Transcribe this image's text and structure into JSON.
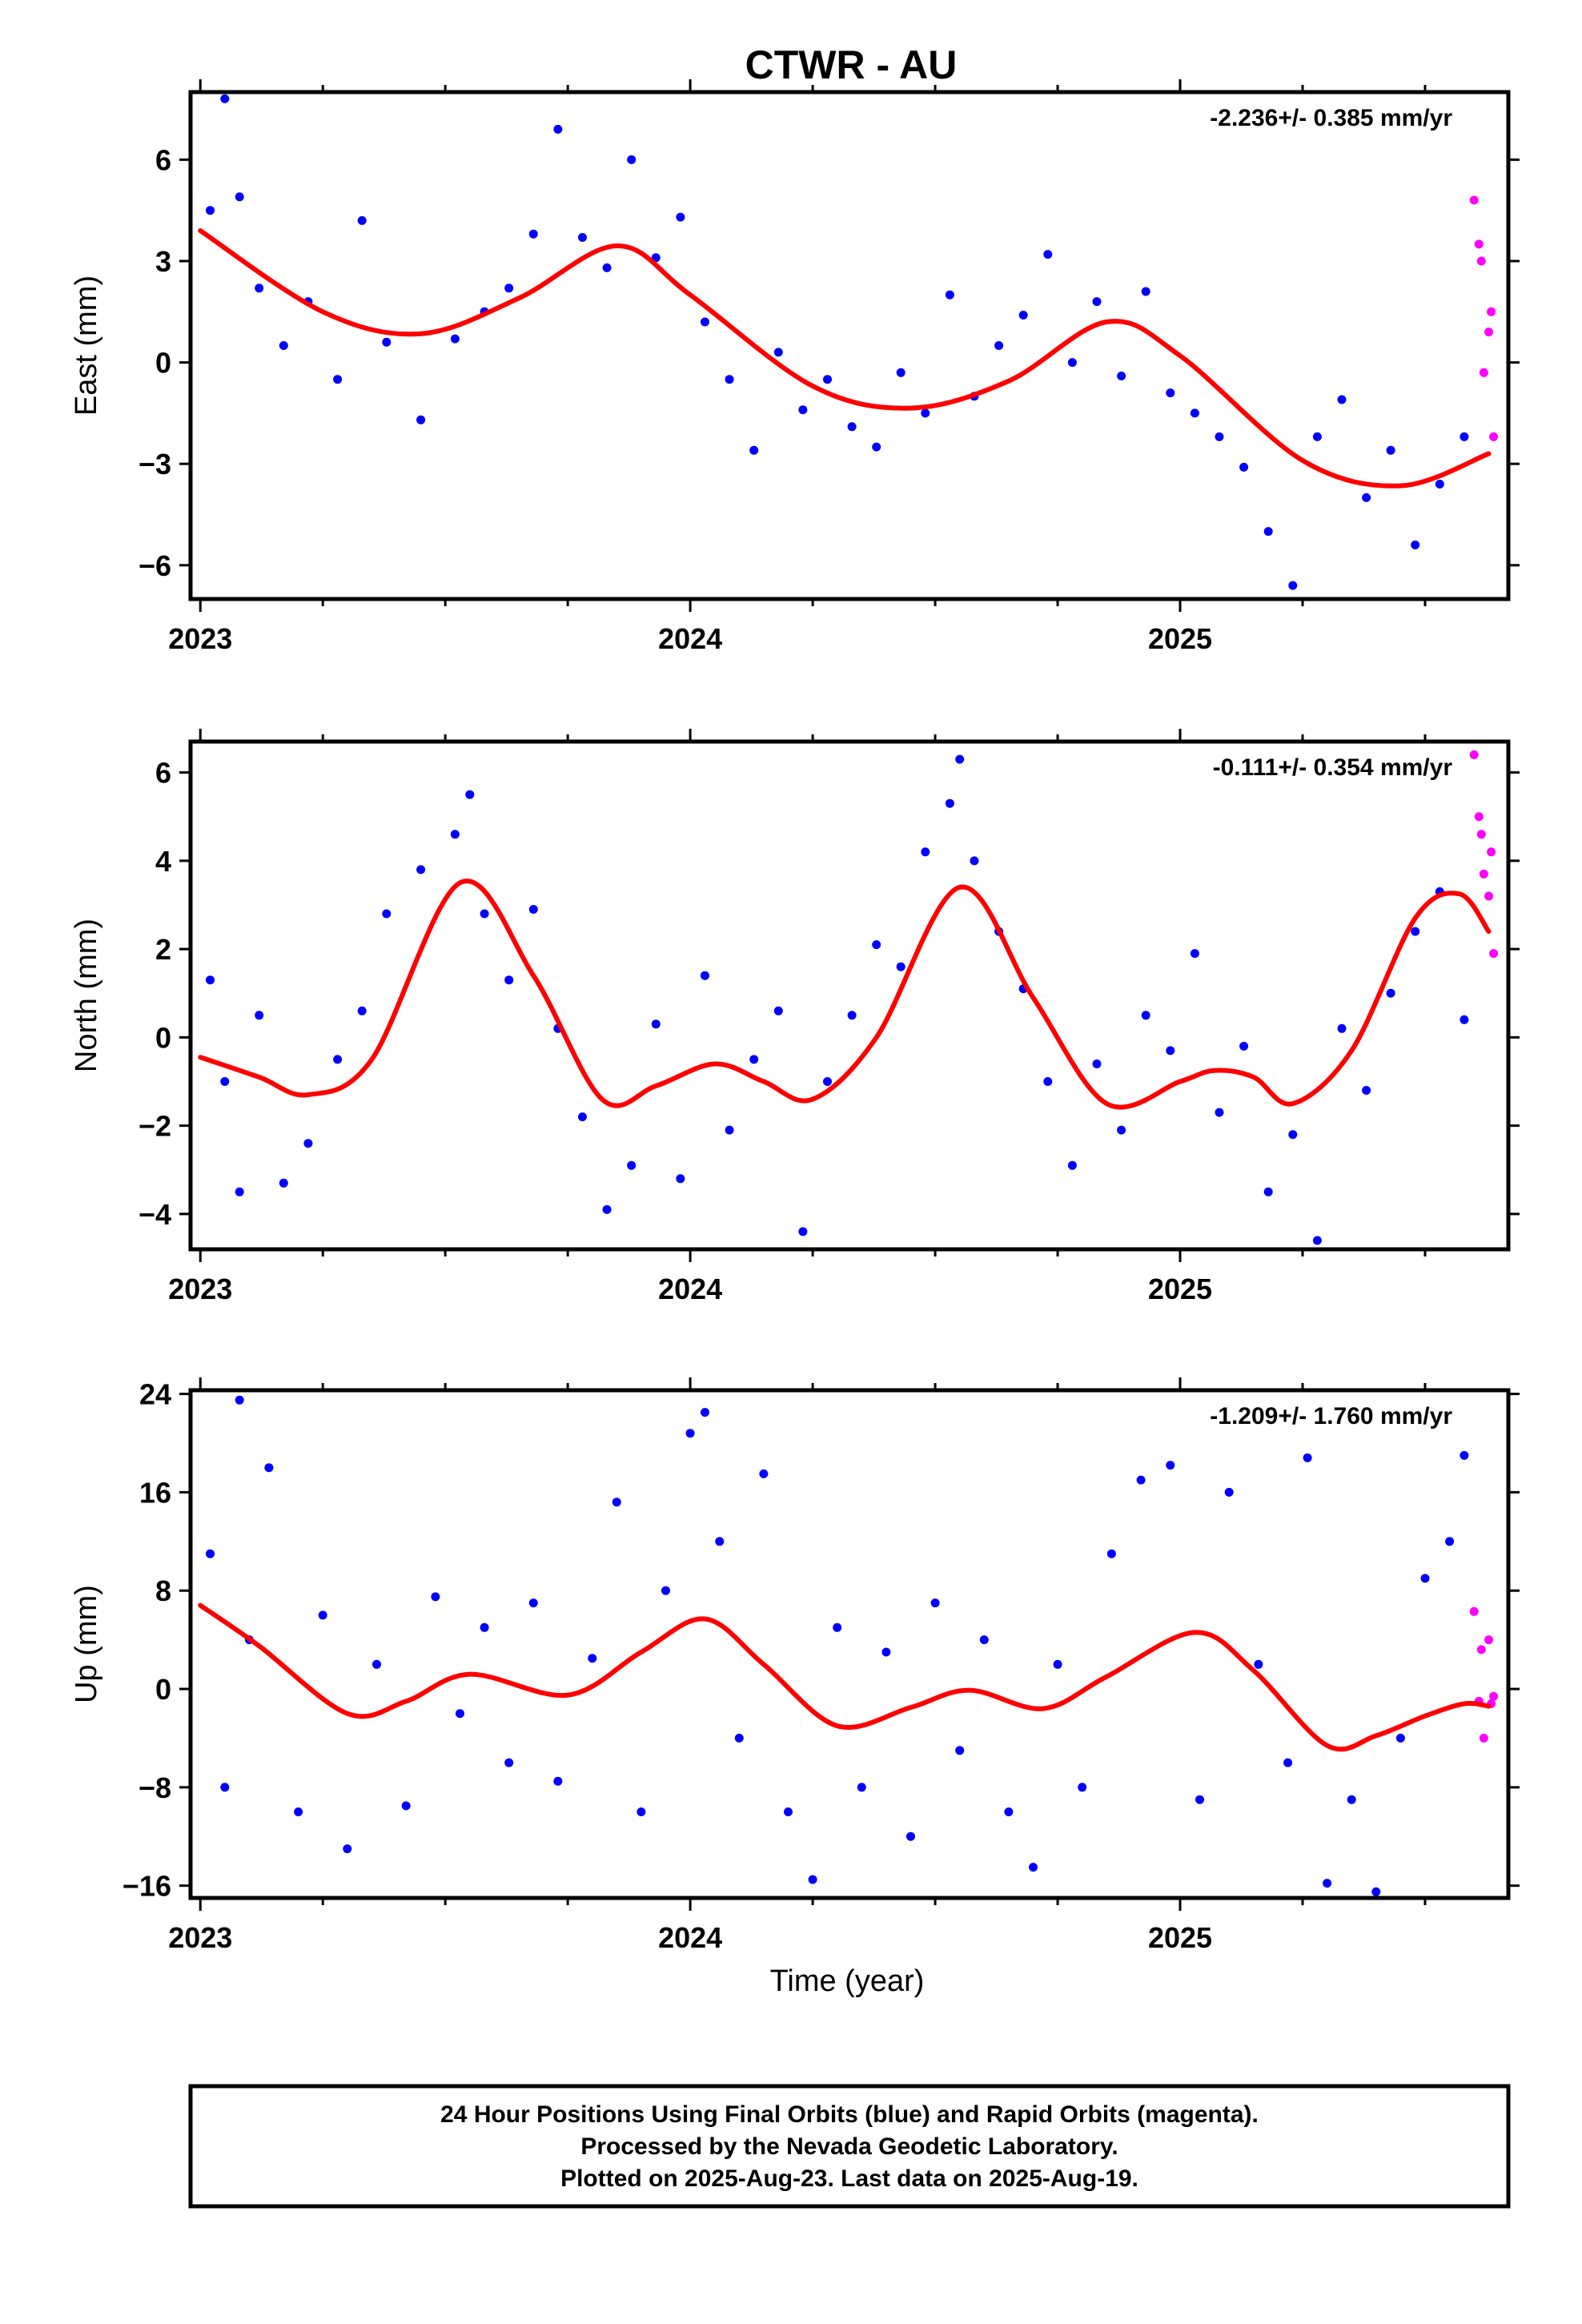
{
  "title": "CTWR - AU",
  "time_label": "Time (year)",
  "footer": {
    "line1": "24 Hour Positions Using Final Orbits (blue) and Rapid Orbits (magenta).",
    "line2": "Processed by the Nevada Geodetic Laboratory.",
    "line3": "Plotted on 2025-Aug-23. Last data on 2025-Aug-19."
  },
  "colors": {
    "final_orbits": "#0000ff",
    "rapid_orbits": "#ff00ff",
    "model_fit": "#ff0000"
  },
  "chart_data": [
    {
      "type": "scatter",
      "ylabel": "East (mm)",
      "rate": "-2.236+/- 0.385 mm/yr",
      "xlim": [
        2022.98,
        2025.67
      ],
      "ylim": [
        -7.0,
        8.0
      ],
      "x_ticks": [
        "2023",
        "2024",
        "2025"
      ],
      "y_ticks": [
        "6",
        "3",
        "0",
        "−3",
        "−6"
      ],
      "y_tick_values": [
        6,
        3,
        0,
        -3,
        -6
      ],
      "grid": false,
      "fit": {
        "x": [
          2023.0,
          2023.25,
          2023.45,
          2023.65,
          2023.85,
          2024.0,
          2024.25,
          2024.45,
          2024.65,
          2024.85,
          2025.0,
          2025.25,
          2025.45,
          2025.63
        ],
        "y": [
          3.9,
          1.5,
          0.85,
          1.9,
          3.45,
          2.0,
          -0.7,
          -1.35,
          -0.55,
          1.2,
          0.2,
          -2.9,
          -3.65,
          -2.7
        ]
      },
      "series": [
        {
          "name": "Final Orbits",
          "x": [
            2023.02,
            2023.05,
            2023.08,
            2023.12,
            2023.17,
            2023.22,
            2023.28,
            2023.33,
            2023.38,
            2023.45,
            2023.52,
            2023.58,
            2023.63,
            2023.68,
            2023.73,
            2023.78,
            2023.83,
            2023.88,
            2023.93,
            2023.98,
            2024.03,
            2024.08,
            2024.13,
            2024.18,
            2024.23,
            2024.28,
            2024.33,
            2024.38,
            2024.43,
            2024.48,
            2024.53,
            2024.58,
            2024.63,
            2024.68,
            2024.73,
            2024.78,
            2024.83,
            2024.88,
            2024.93,
            2024.98,
            2025.03,
            2025.08,
            2025.13,
            2025.18,
            2025.23,
            2025.28,
            2025.33,
            2025.38,
            2025.43,
            2025.48,
            2025.53,
            2025.58
          ],
          "y": [
            4.5,
            7.8,
            4.9,
            2.2,
            0.5,
            1.8,
            -0.5,
            4.2,
            0.6,
            -1.7,
            0.7,
            1.5,
            2.2,
            3.8,
            6.9,
            3.7,
            2.8,
            6.0,
            3.1,
            4.3,
            1.2,
            -0.5,
            -2.6,
            0.3,
            -1.4,
            -0.5,
            -1.9,
            -2.5,
            -0.3,
            -1.5,
            2.0,
            -1.0,
            0.5,
            1.4,
            3.2,
            0.0,
            1.8,
            -0.4,
            2.1,
            -0.9,
            -1.5,
            -2.2,
            -3.1,
            -5.0,
            -6.6,
            -2.2,
            -1.1,
            -4.0,
            -2.6,
            -5.4,
            -3.6,
            -2.2
          ]
        },
        {
          "name": "Rapid Orbits",
          "x": [
            2025.6,
            2025.61,
            2025.615,
            2025.62,
            2025.63,
            2025.635,
            2025.64
          ],
          "y": [
            4.8,
            3.5,
            3.0,
            -0.3,
            0.9,
            1.5,
            -2.2
          ]
        }
      ]
    },
    {
      "type": "scatter",
      "ylabel": "North (mm)",
      "rate": "-0.111+/- 0.354 mm/yr",
      "xlim": [
        2022.98,
        2025.67
      ],
      "ylim": [
        -4.8,
        6.7
      ],
      "x_ticks": [
        "2023",
        "2024",
        "2025"
      ],
      "y_ticks": [
        "6",
        "4",
        "2",
        "0",
        "−2",
        "−4"
      ],
      "y_tick_values": [
        6,
        4,
        2,
        0,
        -2,
        -4
      ],
      "grid": false,
      "fit": {
        "x": [
          2023.0,
          2023.12,
          2023.22,
          2023.35,
          2023.53,
          2023.68,
          2023.82,
          2023.93,
          2024.05,
          2024.15,
          2024.25,
          2024.38,
          2024.55,
          2024.7,
          2024.85,
          2025.0,
          2025.07,
          2025.15,
          2025.23,
          2025.35,
          2025.48,
          2025.57,
          2025.63
        ],
        "y": [
          -0.45,
          -0.9,
          -1.3,
          -0.5,
          3.5,
          1.4,
          -1.4,
          -1.1,
          -0.6,
          -1.0,
          -1.4,
          0.0,
          3.4,
          0.9,
          -1.5,
          -1.0,
          -0.75,
          -0.9,
          -1.5,
          -0.3,
          2.7,
          3.25,
          2.4
        ]
      },
      "series": [
        {
          "name": "Final Orbits",
          "x": [
            2023.02,
            2023.05,
            2023.08,
            2023.12,
            2023.17,
            2023.22,
            2023.28,
            2023.33,
            2023.38,
            2023.45,
            2023.52,
            2023.55,
            2023.58,
            2023.63,
            2023.68,
            2023.73,
            2023.78,
            2023.83,
            2023.88,
            2023.93,
            2023.98,
            2024.03,
            2024.08,
            2024.13,
            2024.18,
            2024.23,
            2024.28,
            2024.33,
            2024.38,
            2024.43,
            2024.48,
            2024.53,
            2024.55,
            2024.58,
            2024.63,
            2024.68,
            2024.73,
            2024.78,
            2024.83,
            2024.88,
            2024.93,
            2024.98,
            2025.03,
            2025.08,
            2025.13,
            2025.18,
            2025.23,
            2025.28,
            2025.33,
            2025.38,
            2025.43,
            2025.48,
            2025.53,
            2025.58
          ],
          "y": [
            1.3,
            -1.0,
            -3.5,
            0.5,
            -3.3,
            -2.4,
            -0.5,
            0.6,
            2.8,
            3.8,
            4.6,
            5.5,
            2.8,
            1.3,
            2.9,
            0.2,
            -1.8,
            -3.9,
            -2.9,
            0.3,
            -3.2,
            1.4,
            -2.1,
            -0.5,
            0.6,
            -4.4,
            -1.0,
            0.5,
            2.1,
            1.6,
            4.2,
            5.3,
            6.3,
            4.0,
            2.4,
            1.1,
            -1.0,
            -2.9,
            -0.6,
            -2.1,
            0.5,
            -0.3,
            1.9,
            -1.7,
            -0.2,
            -3.5,
            -2.2,
            -4.6,
            0.2,
            -1.2,
            1.0,
            2.4,
            3.3,
            0.4
          ]
        },
        {
          "name": "Rapid Orbits",
          "x": [
            2025.6,
            2025.61,
            2025.615,
            2025.62,
            2025.63,
            2025.635,
            2025.64
          ],
          "y": [
            6.4,
            5.0,
            4.6,
            3.7,
            3.2,
            4.2,
            1.9
          ]
        }
      ]
    },
    {
      "type": "scatter",
      "ylabel": "Up (mm)",
      "rate": "-1.209+/- 1.760 mm/yr",
      "xlim": [
        2022.98,
        2025.67
      ],
      "ylim": [
        -17.0,
        24.3
      ],
      "x_ticks": [
        "2023",
        "2024",
        "2025"
      ],
      "y_ticks": [
        "24",
        "16",
        "8",
        "0",
        "−8",
        "−16"
      ],
      "y_tick_values": [
        24,
        16,
        8,
        0,
        -8,
        -16
      ],
      "grid": false,
      "fit": {
        "x": [
          2023.0,
          2023.12,
          2023.3,
          2023.42,
          2023.55,
          2023.75,
          2023.9,
          2024.03,
          2024.15,
          2024.3,
          2024.45,
          2024.57,
          2024.72,
          2024.85,
          2025.03,
          2025.15,
          2025.3,
          2025.4,
          2025.5,
          2025.58,
          2025.63
        ],
        "y": [
          6.8,
          3.5,
          -2.0,
          -1.0,
          1.2,
          -0.5,
          3.0,
          5.7,
          2.0,
          -3.0,
          -1.5,
          -0.1,
          -1.6,
          1.0,
          4.6,
          1.5,
          -4.6,
          -3.8,
          -2.2,
          -1.2,
          -1.4
        ]
      },
      "series": [
        {
          "name": "Final Orbits",
          "x": [
            2023.02,
            2023.05,
            2023.08,
            2023.1,
            2023.14,
            2023.2,
            2023.25,
            2023.3,
            2023.36,
            2023.42,
            2023.48,
            2023.53,
            2023.58,
            2023.63,
            2023.68,
            2023.73,
            2023.8,
            2023.85,
            2023.9,
            2023.95,
            2024.0,
            2024.03,
            2024.06,
            2024.1,
            2024.15,
            2024.2,
            2024.25,
            2024.3,
            2024.35,
            2024.4,
            2024.45,
            2024.5,
            2024.55,
            2024.6,
            2024.65,
            2024.7,
            2024.75,
            2024.8,
            2024.86,
            2024.92,
            2024.98,
            2025.04,
            2025.1,
            2025.16,
            2025.22,
            2025.26,
            2025.3,
            2025.35,
            2025.4,
            2025.45,
            2025.5,
            2025.55,
            2025.58
          ],
          "y": [
            11.0,
            -8.0,
            23.5,
            4.0,
            18.0,
            -10.0,
            6.0,
            -13.0,
            2.0,
            -9.5,
            7.5,
            -2.0,
            5.0,
            -6.0,
            7.0,
            -7.5,
            2.5,
            15.2,
            -10.0,
            8.0,
            20.8,
            22.5,
            12.0,
            -4.0,
            17.5,
            -10.0,
            -15.5,
            5.0,
            -8.0,
            3.0,
            -12.0,
            7.0,
            -5.0,
            4.0,
            -10.0,
            -14.5,
            2.0,
            -8.0,
            11.0,
            17.0,
            18.2,
            -9.0,
            16.0,
            2.0,
            -6.0,
            18.8,
            -15.8,
            -9.0,
            -16.5,
            -4.0,
            9.0,
            12.0,
            19.0
          ]
        },
        {
          "name": "Rapid Orbits",
          "x": [
            2025.6,
            2025.61,
            2025.615,
            2025.62,
            2025.63,
            2025.635,
            2025.64
          ],
          "y": [
            6.3,
            -1.0,
            3.2,
            -4.0,
            4.0,
            -1.2,
            -0.6
          ]
        }
      ]
    }
  ]
}
